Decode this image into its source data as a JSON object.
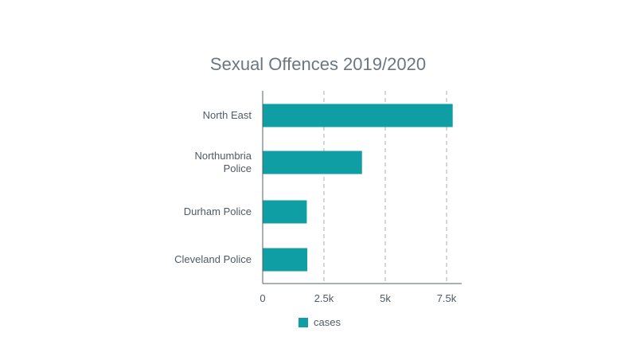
{
  "chart_data": {
    "type": "bar",
    "orientation": "horizontal",
    "title": "Sexual Offences 2019/2020",
    "categories": [
      "North East",
      "Northumbria Police",
      "Durham Police",
      "Cleveland Police"
    ],
    "category_lines": [
      [
        "North East"
      ],
      [
        "Northumbria",
        "Police"
      ],
      [
        "Durham Police"
      ],
      [
        "Cleveland Police"
      ]
    ],
    "series": [
      {
        "name": "cases",
        "values": [
          7750,
          4050,
          1800,
          1820
        ],
        "color": "#0f9ea3"
      }
    ],
    "x_ticks": [
      {
        "value": 0,
        "label": "0"
      },
      {
        "value": 2500,
        "label": "2.5k"
      },
      {
        "value": 5000,
        "label": "5k"
      },
      {
        "value": 7500,
        "label": "7.5k"
      }
    ],
    "xlim": [
      0,
      8100
    ],
    "grid": "vertical-dashed",
    "legend": "bottom-center"
  }
}
